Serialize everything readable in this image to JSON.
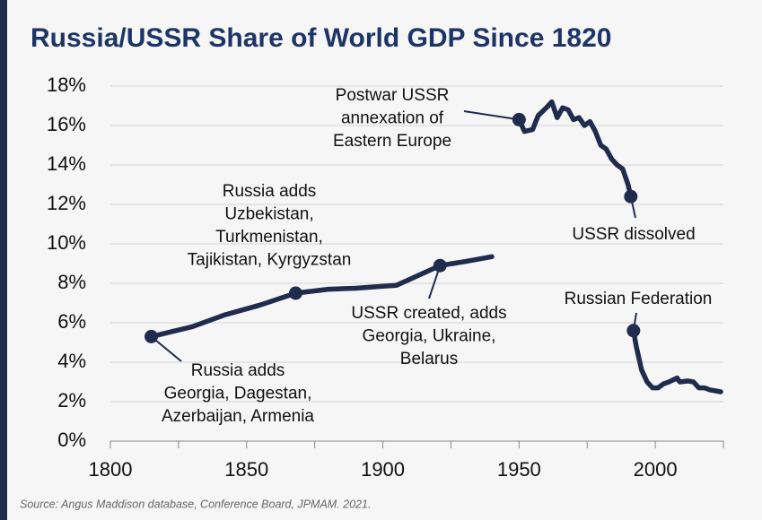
{
  "chart_data": {
    "type": "line",
    "title": "Russia/USSR Share of World GDP Since 1820",
    "source": "Source: Angus Maddison database, Conference Board, JPMAM. 2021.",
    "x": [
      1815,
      1830,
      1842,
      1855,
      1868,
      1880,
      1890,
      1900,
      1905,
      1913,
      1921,
      1930,
      1940,
      null,
      1950,
      1952,
      1955,
      1957,
      1960,
      1962,
      1964,
      1966,
      1968,
      1970,
      1972,
      1974,
      1976,
      1978,
      1980,
      1982,
      1984,
      1986,
      1988,
      1990,
      1991,
      null,
      1992,
      1993,
      1995,
      1997,
      1999,
      2001,
      2003,
      2005,
      2008,
      2009,
      2012,
      2014,
      2016,
      2018,
      2020,
      2024
    ],
    "series": [
      {
        "name": "Russia/USSR share of world GDP",
        "color": "#1f2c4d",
        "values": [
          5.3,
          5.8,
          6.4,
          6.9,
          7.5,
          7.7,
          7.75,
          7.85,
          7.9,
          8.4,
          8.9,
          9.1,
          9.35,
          null,
          16.3,
          15.7,
          15.8,
          16.5,
          16.9,
          17.2,
          16.4,
          16.9,
          16.8,
          16.3,
          16.4,
          16.0,
          16.2,
          15.7,
          15.0,
          14.8,
          14.3,
          14.0,
          13.8,
          13.0,
          12.4,
          null,
          5.6,
          4.8,
          3.6,
          3.0,
          2.7,
          2.7,
          2.9,
          3.0,
          3.2,
          3.0,
          3.05,
          3.0,
          2.7,
          2.7,
          2.6,
          2.5
        ]
      }
    ],
    "xlim": [
      1800,
      2025
    ],
    "xticks": [
      1800,
      1850,
      1900,
      1950,
      2000
    ],
    "xminor_ticks": [
      1825,
      1875,
      1925,
      1975,
      2025
    ],
    "ylim": [
      0,
      18
    ],
    "yticks": [
      {
        "value": 0,
        "label": "0%"
      },
      {
        "value": 2,
        "label": "2%"
      },
      {
        "value": 4,
        "label": "4%"
      },
      {
        "value": 6,
        "label": "6%"
      },
      {
        "value": 8,
        "label": "8%"
      },
      {
        "value": 10,
        "label": "10%"
      },
      {
        "value": 12,
        "label": "12%"
      },
      {
        "value": 14,
        "label": "14%"
      },
      {
        "value": 16,
        "label": "16%"
      },
      {
        "value": 18,
        "label": "18%"
      }
    ],
    "grid": true,
    "annotations": [
      {
        "x": 1815,
        "y": 5.3,
        "lines": [
          "Russia adds",
          "Georgia, Dagestan,",
          "Azerbaijan, Armenia"
        ]
      },
      {
        "x": 1868,
        "y": 7.5,
        "lines": [
          "Russia adds",
          "Uzbekistan,",
          "Turkmenistan,",
          "Tajikistan, Kyrgyzstan"
        ]
      },
      {
        "x": 1921,
        "y": 8.9,
        "lines": [
          "USSR created, adds",
          "Georgia, Ukraine,",
          "Belarus"
        ]
      },
      {
        "x": 1950,
        "y": 16.3,
        "lines": [
          "Postwar USSR",
          "annexation of",
          "Eastern Europe"
        ]
      },
      {
        "x": 1991,
        "y": 12.4,
        "lines": [
          "USSR dissolved"
        ]
      },
      {
        "x": 1992,
        "y": 5.6,
        "lines": [
          "Russian Federation"
        ]
      }
    ]
  }
}
